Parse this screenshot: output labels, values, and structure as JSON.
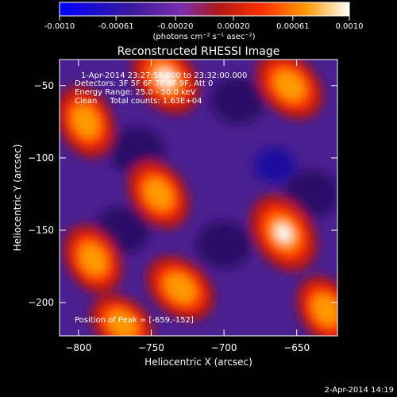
{
  "chart_data": {
    "type": "heatmap",
    "title": "Reconstructed RHESSI Image",
    "xlabel": "Heliocentric X (arcsec)",
    "ylabel": "Heliocentric Y (arcsec)",
    "xlim": [
      -813,
      -622
    ],
    "ylim": [
      -223,
      -32
    ],
    "x_ticks": [
      -800,
      -750,
      -700,
      -650
    ],
    "y_ticks": [
      -50,
      -100,
      -150,
      -200
    ],
    "colorbar": {
      "min": -0.001,
      "max": 0.001,
      "ticks": [
        -0.001,
        -0.00061,
        -0.0002,
        0.0002,
        0.00061,
        0.001
      ],
      "tick_labels": [
        "-0.0010",
        "-0.00061",
        "-0.00020",
        "0.00020",
        "0.00061",
        "0.0010"
      ],
      "unit": "(photons cm⁻² s⁻¹ asec⁻²)",
      "colormap": [
        "#0000ff",
        "#4a1a8c",
        "#7a2eb0",
        "#b01818",
        "#ff4000",
        "#ff9a00",
        "#ffffff"
      ]
    },
    "annotations": [
      "1-Apr-2014 23:27:58.000 to 23:32:00.000",
      "Detectors: 3F 5F 6F 7F 8F 9F, Att 0",
      "Energy Range: 25.0 - 50.0 keV",
      "Clean     Total counts: 1.63E+04"
    ],
    "peak_label": "Position of Peak = [-659,-152]",
    "peak": [
      -659,
      -152
    ],
    "sources": [
      {
        "x": -659,
        "y": -152,
        "value": 0.001
      },
      {
        "x": -740,
        "y": -45,
        "value": 0.00085
      },
      {
        "x": -655,
        "y": -50,
        "value": 0.00072
      },
      {
        "x": -795,
        "y": -75,
        "value": 0.00065
      },
      {
        "x": -745,
        "y": -125,
        "value": 0.00062
      },
      {
        "x": -730,
        "y": -190,
        "value": 0.00065
      },
      {
        "x": -790,
        "y": -170,
        "value": 0.00055
      },
      {
        "x": -630,
        "y": -205,
        "value": 0.0005
      },
      {
        "x": -770,
        "y": -215,
        "value": 0.0004
      },
      {
        "x": -665,
        "y": -105,
        "value": -0.0003
      }
    ]
  },
  "footer_date": "2-Apr-2014 14:19"
}
